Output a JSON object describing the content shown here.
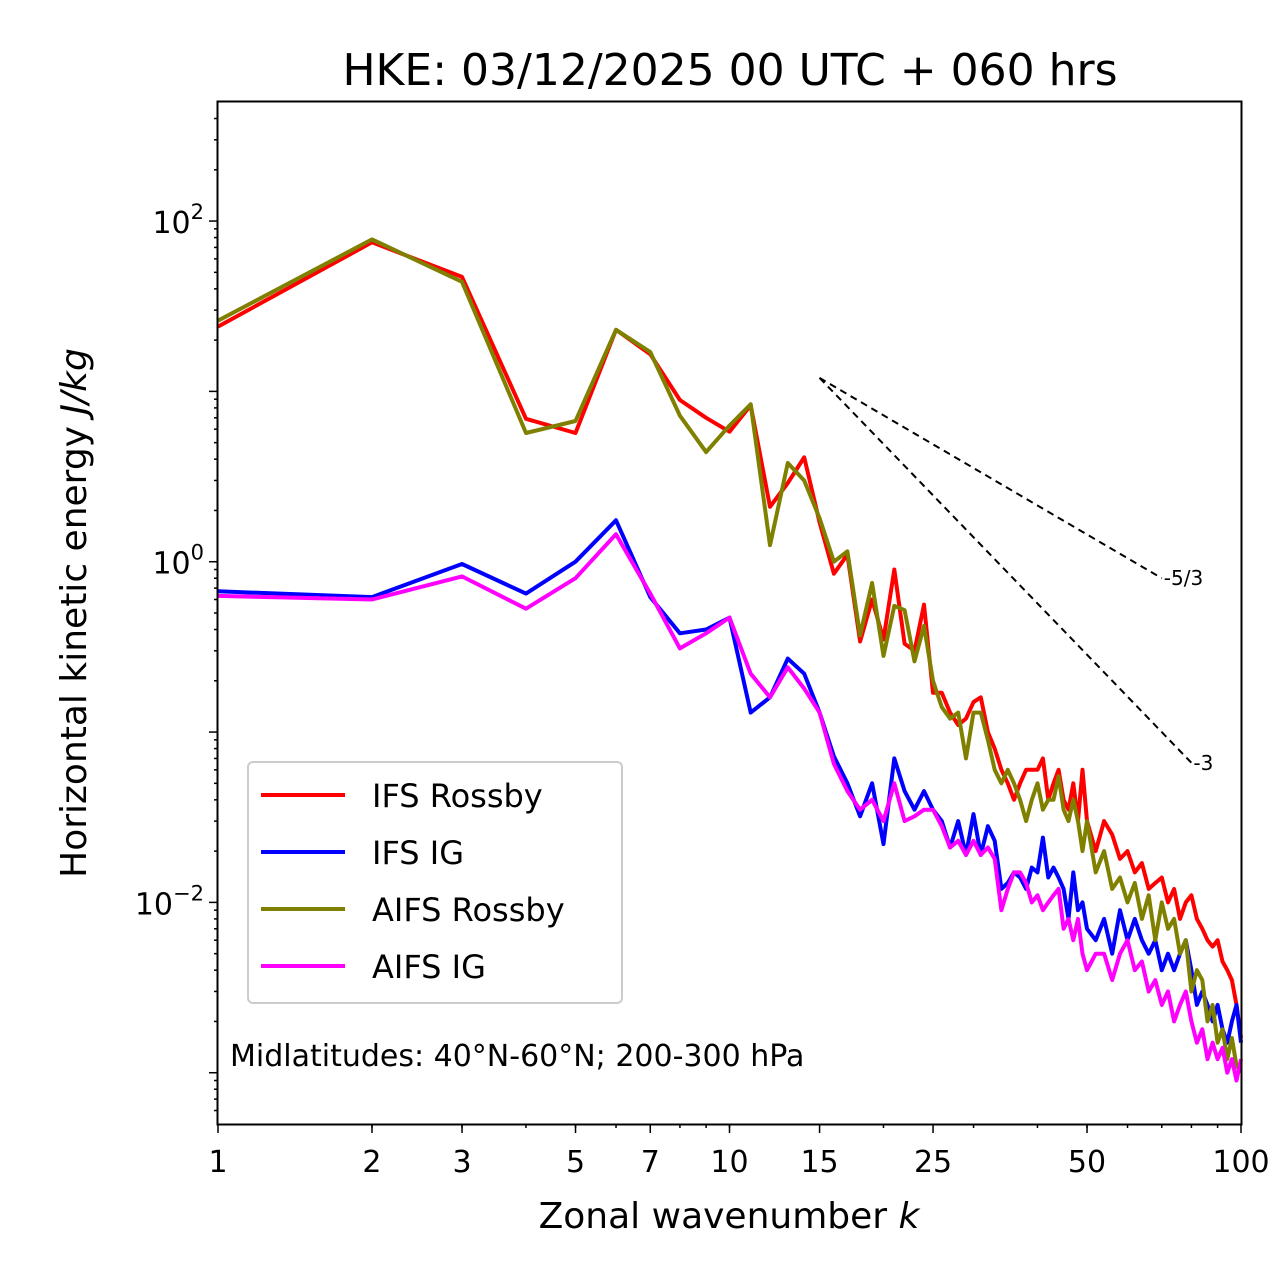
{
  "chart_data": {
    "type": "line",
    "title": "HKE: 03/12/2025 00 UTC + 060 hrs",
    "xlabel_text": "Zonal wavenumber ",
    "xlabel_var": "k",
    "ylabel_text": "Horizontal kinetic energy ",
    "ylabel_units": "J/kg",
    "xscale": "log",
    "yscale": "log",
    "xlim": [
      1,
      100
    ],
    "ylim": [
      0.0005,
      500
    ],
    "xticks": [
      {
        "value": 1,
        "label": "1"
      },
      {
        "value": 2,
        "label": "2"
      },
      {
        "value": 3,
        "label": "3"
      },
      {
        "value": 5,
        "label": "5"
      },
      {
        "value": 7,
        "label": "7"
      },
      {
        "value": 10,
        "label": "10"
      },
      {
        "value": 15,
        "label": "15"
      },
      {
        "value": 25,
        "label": "25"
      },
      {
        "value": 50,
        "label": "50"
      },
      {
        "value": 100,
        "label": "100"
      }
    ],
    "yticks": [
      {
        "value": 100,
        "base": "10",
        "exp": "2"
      },
      {
        "value": 1,
        "base": "10",
        "exp": "0"
      },
      {
        "value": 0.01,
        "base": "10",
        "exp": "−2"
      }
    ],
    "annotation": "Midlatitudes: 40°N-60°N; 200-300 hPa",
    "legend_position": "lower-left",
    "reference_lines": [
      {
        "label": "-5/3",
        "slope": -1.6667,
        "x": [
          15,
          70
        ],
        "y": [
          12.0,
          0.8
        ]
      },
      {
        "label": "-3",
        "slope": -3,
        "x": [
          15,
          80
        ],
        "y": [
          12.0,
          0.066
        ]
      }
    ],
    "series": [
      {
        "name": "IFS Rossby",
        "color": "#ff0000",
        "points": [
          [
            1,
            24
          ],
          [
            2,
            75
          ],
          [
            3,
            47
          ],
          [
            4,
            6.9
          ],
          [
            5,
            5.7
          ],
          [
            6,
            23
          ],
          [
            7,
            16.5
          ],
          [
            8,
            8.9
          ],
          [
            9,
            7
          ],
          [
            10,
            5.8
          ],
          [
            11,
            8.3
          ],
          [
            12,
            2.1
          ],
          [
            13,
            2.9
          ],
          [
            14,
            4.1
          ],
          [
            15,
            1.7
          ],
          [
            16,
            0.85
          ],
          [
            17,
            1.1
          ],
          [
            18,
            0.34
          ],
          [
            19,
            0.6
          ],
          [
            20,
            0.35
          ],
          [
            21,
            0.9
          ],
          [
            22,
            0.33
          ],
          [
            23,
            0.3
          ],
          [
            24,
            0.56
          ],
          [
            25,
            0.17
          ],
          [
            26,
            0.17
          ],
          [
            27,
            0.13
          ],
          [
            28,
            0.11
          ],
          [
            29,
            0.12
          ],
          [
            30,
            0.15
          ],
          [
            31,
            0.16
          ],
          [
            32,
            0.1
          ],
          [
            33,
            0.08
          ],
          [
            34,
            0.06
          ],
          [
            35,
            0.05
          ],
          [
            36,
            0.04
          ],
          [
            37,
            0.05
          ],
          [
            38,
            0.06
          ],
          [
            39,
            0.06
          ],
          [
            40,
            0.06
          ],
          [
            41,
            0.07
          ],
          [
            42,
            0.04
          ],
          [
            43,
            0.05
          ],
          [
            44,
            0.06
          ],
          [
            45,
            0.04
          ],
          [
            46,
            0.035
          ],
          [
            47,
            0.05
          ],
          [
            48,
            0.03
          ],
          [
            49,
            0.06
          ],
          [
            50,
            0.03
          ],
          [
            52,
            0.02
          ],
          [
            54,
            0.03
          ],
          [
            56,
            0.025
          ],
          [
            58,
            0.018
          ],
          [
            60,
            0.02
          ],
          [
            62,
            0.015
          ],
          [
            64,
            0.017
          ],
          [
            66,
            0.012
          ],
          [
            68,
            0.013
          ],
          [
            70,
            0.014
          ],
          [
            72,
            0.01
          ],
          [
            74,
            0.012
          ],
          [
            76,
            0.008
          ],
          [
            78,
            0.01
          ],
          [
            80,
            0.011
          ],
          [
            82,
            0.008
          ],
          [
            84,
            0.007
          ],
          [
            86,
            0.006
          ],
          [
            88,
            0.0055
          ],
          [
            90,
            0.006
          ],
          [
            92,
            0.0045
          ],
          [
            94,
            0.004
          ],
          [
            96,
            0.0035
          ],
          [
            98,
            0.0025
          ],
          [
            100,
            0.0016
          ]
        ]
      },
      {
        "name": "IFS IG",
        "color": "#0000ff",
        "points": [
          [
            1,
            0.67
          ],
          [
            2,
            0.62
          ],
          [
            3,
            0.97
          ],
          [
            4,
            0.65
          ],
          [
            5,
            1.0
          ],
          [
            6,
            1.75
          ],
          [
            7,
            0.62
          ],
          [
            8,
            0.38
          ],
          [
            9,
            0.4
          ],
          [
            10,
            0.47
          ],
          [
            11,
            0.13
          ],
          [
            12,
            0.16
          ],
          [
            13,
            0.27
          ],
          [
            14,
            0.22
          ],
          [
            15,
            0.13
          ],
          [
            16,
            0.072
          ],
          [
            17,
            0.05
          ],
          [
            18,
            0.032
          ],
          [
            19,
            0.05
          ],
          [
            20,
            0.022
          ],
          [
            21,
            0.07
          ],
          [
            22,
            0.045
          ],
          [
            23,
            0.035
          ],
          [
            24,
            0.045
          ],
          [
            25,
            0.035
          ],
          [
            26,
            0.03
          ],
          [
            27,
            0.021
          ],
          [
            28,
            0.03
          ],
          [
            29,
            0.019
          ],
          [
            30,
            0.033
          ],
          [
            31,
            0.019
          ],
          [
            32,
            0.028
          ],
          [
            33,
            0.023
          ],
          [
            34,
            0.012
          ],
          [
            35,
            0.013
          ],
          [
            36,
            0.015
          ],
          [
            37,
            0.014
          ],
          [
            38,
            0.012
          ],
          [
            39,
            0.016
          ],
          [
            40,
            0.015
          ],
          [
            41,
            0.024
          ],
          [
            42,
            0.014
          ],
          [
            43,
            0.016
          ],
          [
            44,
            0.014
          ],
          [
            45,
            0.012
          ],
          [
            46,
            0.008
          ],
          [
            47,
            0.015
          ],
          [
            48,
            0.009
          ],
          [
            49,
            0.01
          ],
          [
            50,
            0.007
          ],
          [
            52,
            0.006
          ],
          [
            54,
            0.008
          ],
          [
            56,
            0.005
          ],
          [
            58,
            0.009
          ],
          [
            60,
            0.006
          ],
          [
            62,
            0.008
          ],
          [
            64,
            0.006
          ],
          [
            66,
            0.005
          ],
          [
            68,
            0.006
          ],
          [
            70,
            0.004
          ],
          [
            72,
            0.005
          ],
          [
            74,
            0.004
          ],
          [
            76,
            0.005
          ],
          [
            78,
            0.006
          ],
          [
            80,
            0.004
          ],
          [
            82,
            0.0025
          ],
          [
            84,
            0.003
          ],
          [
            86,
            0.0025
          ],
          [
            88,
            0.002
          ],
          [
            90,
            0.0025
          ],
          [
            92,
            0.0018
          ],
          [
            94,
            0.0015
          ],
          [
            96,
            0.002
          ],
          [
            98,
            0.0025
          ],
          [
            100,
            0.0015
          ]
        ]
      },
      {
        "name": "AIFS Rossby",
        "color": "#808000",
        "points": [
          [
            1,
            26
          ],
          [
            2,
            78
          ],
          [
            3,
            44
          ],
          [
            4,
            5.7
          ],
          [
            5,
            6.7
          ],
          [
            6,
            23
          ],
          [
            7,
            17
          ],
          [
            8,
            7.2
          ],
          [
            9,
            4.4
          ],
          [
            10,
            6.3
          ],
          [
            11,
            8.4
          ],
          [
            12,
            1.25
          ],
          [
            13,
            3.8
          ],
          [
            14,
            3.0
          ],
          [
            15,
            1.8
          ],
          [
            16,
            1.0
          ],
          [
            17,
            1.15
          ],
          [
            18,
            0.37
          ],
          [
            19,
            0.75
          ],
          [
            20,
            0.28
          ],
          [
            21,
            0.55
          ],
          [
            22,
            0.52
          ],
          [
            23,
            0.26
          ],
          [
            24,
            0.42
          ],
          [
            25,
            0.2
          ],
          [
            26,
            0.14
          ],
          [
            27,
            0.12
          ],
          [
            28,
            0.13
          ],
          [
            29,
            0.07
          ],
          [
            30,
            0.13
          ],
          [
            31,
            0.13
          ],
          [
            32,
            0.09
          ],
          [
            33,
            0.06
          ],
          [
            34,
            0.05
          ],
          [
            35,
            0.06
          ],
          [
            36,
            0.05
          ],
          [
            37,
            0.04
          ],
          [
            38,
            0.03
          ],
          [
            39,
            0.04
          ],
          [
            40,
            0.05
          ],
          [
            41,
            0.035
          ],
          [
            42,
            0.04
          ],
          [
            43,
            0.04
          ],
          [
            44,
            0.055
          ],
          [
            45,
            0.035
          ],
          [
            46,
            0.03
          ],
          [
            47,
            0.04
          ],
          [
            48,
            0.03
          ],
          [
            49,
            0.02
          ],
          [
            50,
            0.03
          ],
          [
            52,
            0.015
          ],
          [
            54,
            0.02
          ],
          [
            56,
            0.012
          ],
          [
            58,
            0.014
          ],
          [
            60,
            0.01
          ],
          [
            62,
            0.013
          ],
          [
            64,
            0.008
          ],
          [
            66,
            0.011
          ],
          [
            68,
            0.006
          ],
          [
            70,
            0.01
          ],
          [
            72,
            0.007
          ],
          [
            74,
            0.008
          ],
          [
            76,
            0.005
          ],
          [
            78,
            0.006
          ],
          [
            80,
            0.003
          ],
          [
            82,
            0.004
          ],
          [
            84,
            0.0035
          ],
          [
            86,
            0.002
          ],
          [
            88,
            0.0025
          ],
          [
            90,
            0.0015
          ],
          [
            92,
            0.0018
          ],
          [
            94,
            0.0012
          ],
          [
            96,
            0.0016
          ],
          [
            98,
            0.0011
          ],
          [
            100,
            0.001
          ]
        ]
      },
      {
        "name": "AIFS IG",
        "color": "#ff00ff",
        "points": [
          [
            1,
            0.63
          ],
          [
            2,
            0.6
          ],
          [
            3,
            0.82
          ],
          [
            4,
            0.53
          ],
          [
            5,
            0.8
          ],
          [
            6,
            1.45
          ],
          [
            7,
            0.65
          ],
          [
            8,
            0.31
          ],
          [
            9,
            0.38
          ],
          [
            10,
            0.47
          ],
          [
            11,
            0.22
          ],
          [
            12,
            0.16
          ],
          [
            13,
            0.24
          ],
          [
            14,
            0.18
          ],
          [
            15,
            0.13
          ],
          [
            16,
            0.065
          ],
          [
            17,
            0.045
          ],
          [
            18,
            0.035
          ],
          [
            19,
            0.04
          ],
          [
            20,
            0.03
          ],
          [
            21,
            0.05
          ],
          [
            22,
            0.03
          ],
          [
            23,
            0.032
          ],
          [
            24,
            0.035
          ],
          [
            25,
            0.035
          ],
          [
            26,
            0.028
          ],
          [
            27,
            0.021
          ],
          [
            28,
            0.023
          ],
          [
            29,
            0.019
          ],
          [
            30,
            0.023
          ],
          [
            31,
            0.019
          ],
          [
            32,
            0.021
          ],
          [
            33,
            0.018
          ],
          [
            34,
            0.009
          ],
          [
            35,
            0.012
          ],
          [
            36,
            0.015
          ],
          [
            37,
            0.015
          ],
          [
            38,
            0.013
          ],
          [
            39,
            0.01
          ],
          [
            40,
            0.011
          ],
          [
            41,
            0.009
          ],
          [
            42,
            0.01
          ],
          [
            43,
            0.011
          ],
          [
            44,
            0.012
          ],
          [
            45,
            0.007
          ],
          [
            46,
            0.008
          ],
          [
            47,
            0.006
          ],
          [
            48,
            0.008
          ],
          [
            49,
            0.005
          ],
          [
            50,
            0.004
          ],
          [
            52,
            0.005
          ],
          [
            54,
            0.005
          ],
          [
            56,
            0.0035
          ],
          [
            58,
            0.005
          ],
          [
            60,
            0.006
          ],
          [
            62,
            0.004
          ],
          [
            64,
            0.0045
          ],
          [
            66,
            0.003
          ],
          [
            68,
            0.0035
          ],
          [
            70,
            0.0025
          ],
          [
            72,
            0.003
          ],
          [
            74,
            0.002
          ],
          [
            76,
            0.0025
          ],
          [
            78,
            0.003
          ],
          [
            80,
            0.002
          ],
          [
            82,
            0.0015
          ],
          [
            84,
            0.0018
          ],
          [
            86,
            0.0012
          ],
          [
            88,
            0.0015
          ],
          [
            90,
            0.0012
          ],
          [
            92,
            0.0014
          ],
          [
            94,
            0.001
          ],
          [
            96,
            0.0012
          ],
          [
            98,
            0.0009
          ],
          [
            100,
            0.0012
          ]
        ]
      }
    ]
  }
}
